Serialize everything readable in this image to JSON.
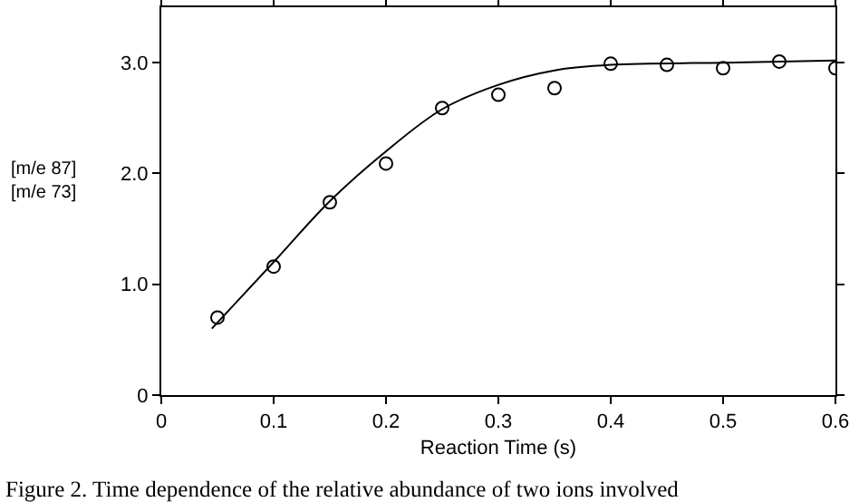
{
  "chart_data": {
    "type": "scatter",
    "xlabel": "Reaction Time (s)",
    "ylabel": "[m/e 87]\n[m/e 73]",
    "annotations": [
      "Figure 2. Time dependence of the relative abundance of two ions involved"
    ],
    "series": [
      {
        "color": "#000000",
        "marker": "circle",
        "x": [
          0.05,
          0.1,
          0.15,
          0.2,
          0.25,
          0.3,
          0.35,
          0.4,
          0.45,
          0.5,
          0.55,
          0.6
        ],
        "values": [
          0.7,
          1.16,
          1.74,
          2.09,
          2.59,
          2.71,
          2.77,
          2.99,
          2.98,
          2.95,
          3.01,
          2.95
        ]
      },
      {
        "type": "line",
        "color": "#000000",
        "line_style": "solid",
        "x": [
          0.045,
          0.1,
          0.15,
          0.2,
          0.25,
          0.3,
          0.35,
          0.4,
          0.5,
          0.6
        ],
        "values": [
          0.6,
          1.2,
          1.75,
          2.2,
          2.58,
          2.8,
          2.93,
          2.98,
          3.0,
          3.02
        ]
      }
    ],
    "xlim": [
      0,
      0.6
    ],
    "xticks": [
      0,
      0.1,
      0.2,
      0.3,
      0.4,
      0.5,
      0.6
    ],
    "ylim": [
      0,
      3.5
    ],
    "yticks": [
      0,
      {
        "value": 1,
        "label": "1.0"
      },
      {
        "value": 2,
        "label": "2.0"
      },
      {
        "value": 3,
        "label": "3.0"
      }
    ],
    "grid": false,
    "legend": false
  }
}
